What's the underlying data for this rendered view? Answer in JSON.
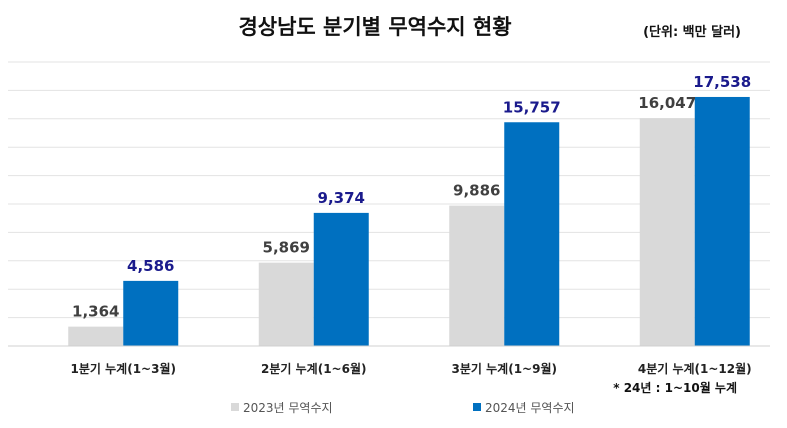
{
  "chart_data": {
    "type": "bar",
    "title": "경상남도 분기별 무역수지 현황",
    "unit_label": "(단위: 백만 달러)",
    "categories": [
      "1분기 누계(1~3월)",
      "2분기 누계(1~6월)",
      "3분기 누계(1~9월)",
      "4분기 누계(1~12월)"
    ],
    "series": [
      {
        "name": "2023년 무역수지",
        "color": "#d9d9d9",
        "values": [
          1364,
          5869,
          9886,
          16047
        ],
        "labels": [
          "1,364",
          "5,869",
          "9,886",
          "16,047"
        ]
      },
      {
        "name": "2024년 무역수지",
        "color": "#0070c0",
        "values": [
          4586,
          9374,
          15757,
          17538
        ],
        "labels": [
          "4,586",
          "9,374",
          "15,757",
          "17,538"
        ]
      }
    ],
    "ylim": [
      0,
      20000
    ],
    "grid": true,
    "legend_position": "bottom",
    "note": "* 24년 : 1~10월 누계"
  }
}
